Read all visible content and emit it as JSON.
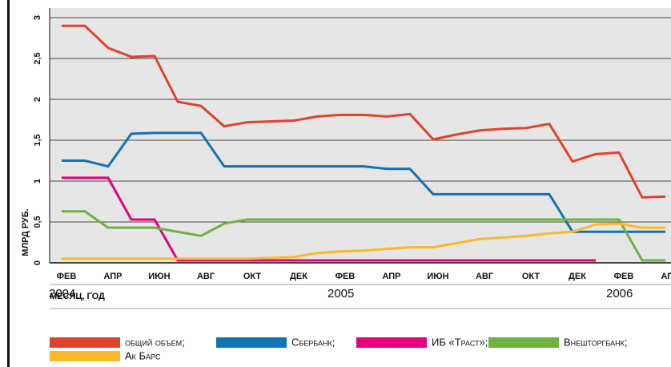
{
  "chart_data": {
    "type": "line",
    "y_label": "МЛРД РУБ.",
    "x_label": "МЕСЯЦ, ГОД",
    "categories": [
      "ФЕВ",
      null,
      "АПР",
      null,
      "ИЮН",
      null,
      "АВГ",
      null,
      "ОКТ",
      null,
      "ДЕК",
      null,
      "ФЕВ",
      null,
      "АПР",
      null,
      "ИЮН",
      null,
      "АВГ",
      null,
      "ОКТ",
      null,
      "ДЕК",
      null,
      "ФЕВ",
      null,
      "АПР"
    ],
    "year_labels": [
      "2004",
      "2005",
      "2006"
    ],
    "ylim": [
      0,
      3
    ],
    "yticks": [
      0,
      {
        "value": 0.5,
        "label": "0,5"
      },
      1,
      {
        "value": 1.5,
        "label": "1,5"
      },
      2,
      {
        "value": 2.5,
        "label": "2,5"
      },
      3
    ],
    "grid": true,
    "series": [
      {
        "name": "общий объем;",
        "color": "#e0432a",
        "values": [
          2.9,
          2.9,
          2.63,
          2.52,
          2.53,
          1.97,
          1.92,
          1.67,
          1.72,
          1.73,
          1.74,
          1.79,
          1.81,
          1.81,
          1.79,
          1.82,
          1.51,
          1.57,
          1.62,
          1.64,
          1.65,
          1.7,
          1.24,
          1.33,
          1.35,
          0.8,
          0.81
        ]
      },
      {
        "name": "Сбербанк;",
        "color": "#1273b5",
        "values": [
          1.25,
          1.25,
          1.18,
          1.58,
          1.59,
          1.59,
          1.59,
          1.18,
          1.18,
          1.18,
          1.18,
          1.18,
          1.18,
          1.18,
          1.15,
          1.15,
          0.84,
          0.84,
          0.84,
          0.84,
          0.84,
          0.84,
          0.38,
          0.38,
          0.38,
          0.38,
          0.38
        ]
      },
      {
        "name": "ИБ «Траст»;",
        "color": "#e5007e",
        "values": [
          1.04,
          1.04,
          1.04,
          0.53,
          0.53,
          0.03,
          0.03,
          0.03,
          0.03,
          0.03,
          0.03,
          0.03,
          0.03,
          0.03,
          0.03,
          0.03,
          0.03,
          0.03,
          0.03,
          0.03,
          0.03,
          0.03,
          0.03,
          0.03,
          null,
          null,
          null
        ]
      },
      {
        "name": "Внешторгбанк;",
        "color": "#6cb33f",
        "values": [
          0.63,
          0.63,
          0.43,
          0.43,
          0.43,
          0.38,
          0.33,
          0.48,
          0.53,
          0.53,
          0.53,
          0.53,
          0.53,
          0.53,
          0.53,
          0.53,
          0.53,
          0.53,
          0.53,
          0.53,
          0.53,
          0.53,
          0.53,
          0.53,
          0.53,
          0.03,
          0.03
        ]
      },
      {
        "name": "Ак Барс",
        "color": "#fbb92a",
        "values": [
          0.05,
          0.05,
          0.05,
          0.05,
          0.05,
          0.05,
          0.05,
          0.05,
          0.05,
          0.06,
          0.07,
          0.12,
          0.14,
          0.15,
          0.17,
          0.19,
          0.19,
          0.24,
          0.29,
          0.31,
          0.33,
          0.36,
          0.38,
          0.47,
          0.48,
          0.43,
          0.43
        ]
      }
    ]
  }
}
